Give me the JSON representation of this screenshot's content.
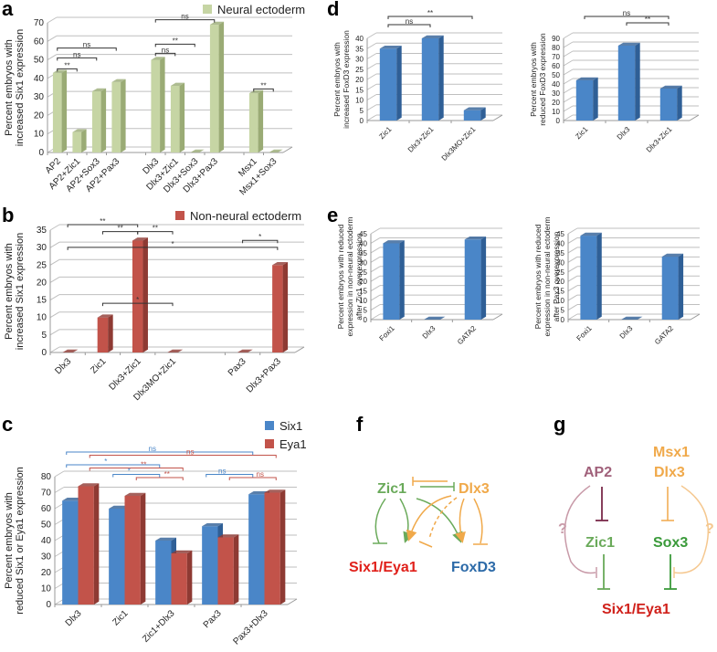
{
  "panels": {
    "a": "a",
    "b": "b",
    "c": "c",
    "d": "d",
    "e": "e",
    "f": "f",
    "g": "g"
  },
  "colors": {
    "neural": "#c6d5a4",
    "neural_side": "#9aab75",
    "nonneural": "#c2534a",
    "nonneural_side": "#8e3a33",
    "six1": "#4a86c8",
    "six1_side": "#2f5f96",
    "eya1": "#c2534a",
    "eya1_side": "#8e3a33",
    "grid": "#bfbfbf"
  },
  "chart_data": [
    {
      "id": "a",
      "type": "bar",
      "title": "",
      "legend": [
        "Neural ectoderm"
      ],
      "legend_position": "top-right",
      "ylabel_line1": "Percent embryos with",
      "ylabel_line2": "increased Six1 expression",
      "ylim": [
        0,
        70
      ],
      "yticks": [
        0,
        10,
        20,
        30,
        40,
        50,
        60,
        70
      ],
      "categories": [
        "AP2",
        "AP2+Zic1",
        "AP2+Sox3",
        "AP2+Pax3",
        "",
        "Dlx3",
        "Dlx3+Zic1",
        "Dlx3+Sox3",
        "Dlx3+Pax3",
        "",
        "Msx1",
        "Msx1+Sox3"
      ],
      "series": [
        {
          "name": "Neural ectoderm",
          "values": [
            43,
            11,
            33,
            38,
            null,
            50,
            36,
            0,
            69,
            null,
            32,
            0
          ]
        }
      ],
      "annotations": [
        {
          "from": 0,
          "to": 1,
          "label": "**",
          "level": 1
        },
        {
          "from": 0,
          "to": 2,
          "label": "ns",
          "level": 2
        },
        {
          "from": 0,
          "to": 3,
          "label": "ns",
          "level": 3
        },
        {
          "from": 5,
          "to": 6,
          "label": "ns",
          "level": 2
        },
        {
          "from": 5,
          "to": 7,
          "label": "**",
          "level": 3
        },
        {
          "from": 5,
          "to": 8,
          "label": "ns",
          "level": 5
        },
        {
          "from": 10,
          "to": 11,
          "label": "**",
          "level": 0
        }
      ]
    },
    {
      "id": "b",
      "type": "bar",
      "legend": [
        "Non-neural ectoderm"
      ],
      "legend_position": "top-right",
      "ylabel_line1": "Percent embryos with",
      "ylabel_line2": "increased Six1 expression",
      "ylim": [
        0,
        35
      ],
      "yticks": [
        0,
        5,
        10,
        15,
        20,
        25,
        30,
        35
      ],
      "categories": [
        "Dlx3",
        "Zic1",
        "Dlx3+Zic1",
        "Dlx3MO+Zic1",
        "",
        "Pax3",
        "Dlx3+Pax3"
      ],
      "series": [
        {
          "name": "Non-neural ectoderm",
          "values": [
            0,
            10,
            32,
            0,
            null,
            0,
            25
          ]
        }
      ],
      "annotations": [
        {
          "from": 0,
          "to": 2,
          "label": "**",
          "y": 35
        },
        {
          "from": 1,
          "to": 2,
          "label": "**",
          "y": 33
        },
        {
          "from": 2,
          "to": 3,
          "label": "**",
          "y": 33
        },
        {
          "from": 0,
          "to": 6,
          "label": "*",
          "y": 28.5
        },
        {
          "from": 5,
          "to": 6,
          "label": "*",
          "y": 30.5
        },
        {
          "from": 1,
          "to": 3,
          "label": "*",
          "y": 12.5
        }
      ]
    },
    {
      "id": "c",
      "type": "bar",
      "legend": [
        "Six1",
        "Eya1"
      ],
      "legend_position": "top-right",
      "ylabel_line1": "Percent embryos with",
      "ylabel_line2": "reduced Six1 or Eya1 expression",
      "ylim": [
        0,
        80
      ],
      "yticks": [
        0,
        10,
        20,
        30,
        40,
        50,
        60,
        70,
        80
      ],
      "categories": [
        "Dlx3",
        "Zic1",
        "Zic1+Dlx3",
        "Pax3",
        "Pax3+Dlx3"
      ],
      "series": [
        {
          "name": "Six1",
          "values": [
            65,
            60,
            40,
            49,
            69
          ]
        },
        {
          "name": "Eya1",
          "values": [
            74,
            68,
            32,
            42,
            70
          ]
        }
      ],
      "annotations": [
        {
          "series": "Six1",
          "from": 0,
          "to": 4,
          "label": "ns",
          "y": 92
        },
        {
          "series": "Eya1",
          "from": 0,
          "to": 4,
          "label": "ns",
          "y": 90
        },
        {
          "series": "Six1",
          "from": 0,
          "to": 2,
          "label": "*",
          "y": 84
        },
        {
          "series": "Eya1",
          "from": 0,
          "to": 2,
          "label": "**",
          "y": 82
        },
        {
          "series": "Six1",
          "from": 1,
          "to": 2,
          "label": "*",
          "y": 78
        },
        {
          "series": "Eya1",
          "from": 1,
          "to": 2,
          "label": "**",
          "y": 76
        },
        {
          "series": "Six1",
          "from": 3,
          "to": 4,
          "label": "ns",
          "y": 78
        },
        {
          "series": "Eya1",
          "from": 3,
          "to": 4,
          "label": "ns",
          "y": 76
        }
      ]
    },
    {
      "id": "d1",
      "type": "bar",
      "ylabel_line1": "Percent embryos with",
      "ylabel_line2": "increased FoxD3 expression",
      "ylim": [
        0,
        40
      ],
      "yticks": [
        0,
        5,
        10,
        15,
        20,
        25,
        30,
        35,
        40
      ],
      "categories": [
        "Zic1",
        "Dlx3+Zic1",
        "Dlx3MO+Zic1"
      ],
      "series": [
        {
          "name": "FoxD3",
          "values": [
            35,
            40,
            5
          ]
        }
      ],
      "annotations": [
        {
          "from": 0,
          "to": 1,
          "label": "ns",
          "y": 44
        },
        {
          "from": 0,
          "to": 2,
          "label": "**",
          "y": 48
        }
      ]
    },
    {
      "id": "d2",
      "type": "bar",
      "ylabel_line1": "Percent embryos with",
      "ylabel_line2": "reduced FoxD3 expression",
      "ylim": [
        0,
        90
      ],
      "yticks": [
        0,
        10,
        20,
        30,
        40,
        50,
        60,
        70,
        80,
        90
      ],
      "categories": [
        "Zic1",
        "Dlx3",
        "Dlx3+Zic1"
      ],
      "series": [
        {
          "name": "FoxD3",
          "values": [
            44,
            82,
            35
          ]
        }
      ],
      "annotations": [
        {
          "from": 0,
          "to": 2,
          "label": "ns",
          "y": 108
        },
        {
          "from": 1,
          "to": 2,
          "label": "**",
          "y": 101
        }
      ]
    },
    {
      "id": "e1",
      "type": "bar",
      "ylabel_line1": "Percent embryos with reduced",
      "ylabel_line2": "expression in non-neural ectoderm",
      "ylabel_line3": "after Zic1 overexpression",
      "ylim": [
        0,
        45
      ],
      "yticks": [
        0,
        5,
        10,
        15,
        20,
        25,
        30,
        35,
        40,
        45
      ],
      "categories": [
        "Foxi1",
        "Dlx3",
        "GATA2"
      ],
      "series": [
        {
          "name": "Zic1",
          "values": [
            40,
            0,
            42
          ]
        }
      ],
      "annotations": []
    },
    {
      "id": "e2",
      "type": "bar",
      "ylabel_line1": "Percent embryos with reduced",
      "ylabel_line2": "expression in non-neural ectoderm",
      "ylabel_line3": "after Pax3 overexpression",
      "ylim": [
        0,
        45
      ],
      "yticks": [
        0,
        5,
        10,
        15,
        20,
        25,
        30,
        35,
        40,
        45
      ],
      "categories": [
        "Foxi1",
        "Dlx3",
        "GATA2"
      ],
      "series": [
        {
          "name": "Pax3",
          "values": [
            44,
            0,
            33
          ]
        }
      ],
      "annotations": []
    }
  ],
  "diagram_f": {
    "nodes": {
      "zic1": "Zic1",
      "dlx3": "Dlx3",
      "six1eya1": "Six1/Eya1",
      "foxd3": "FoxD3"
    },
    "colors": {
      "zic1": "#6aaa5a",
      "dlx3": "#f0a94a",
      "six1eya1": "#e0201a",
      "foxd3": "#2c6aa8"
    }
  },
  "diagram_g": {
    "nodes": {
      "ap2": "AP2",
      "msx1": "Msx1",
      "dlx3": "Dlx3",
      "zic1": "Zic1",
      "sox3": "Sox3",
      "six1eya1": "Six1/Eya1",
      "q_left": "?",
      "q_right": "?"
    },
    "colors": {
      "ap2": "#a0607a",
      "msx_dlx": "#f0a94a",
      "zic1": "#6aaa5a",
      "sox3": "#3a9a3a",
      "six1eya1": "#d0201a",
      "q_left": "#c89aa8",
      "q_right": "#f5c890"
    }
  }
}
